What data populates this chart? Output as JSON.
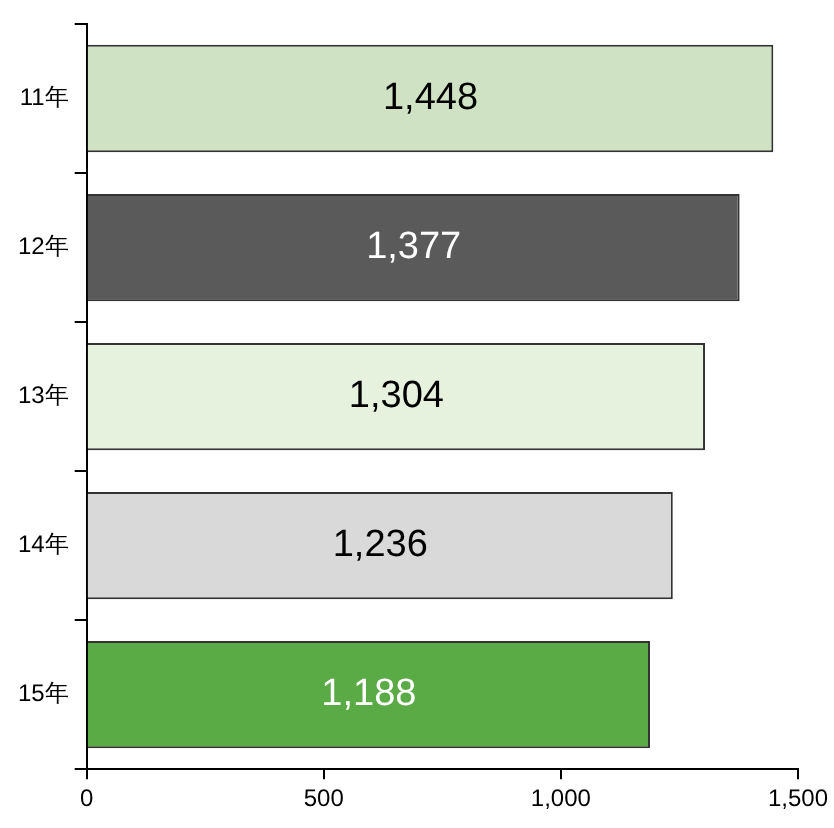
{
  "chart_data": {
    "type": "bar",
    "orientation": "horizontal",
    "categories": [
      "11年",
      "12年",
      "13年",
      "14年",
      "15年"
    ],
    "values": [
      1448,
      1377,
      1304,
      1236,
      1188
    ],
    "colors": [
      "#cfe3c4",
      "#5a5a5a",
      "#e6f2de",
      "#d9d9d9",
      "#5aaa46"
    ],
    "xlim": [
      0,
      1500
    ],
    "xticks": [
      0,
      500,
      {
        "value": 1000,
        "label": "1,000"
      },
      {
        "value": 1500,
        "label": "1,500"
      }
    ],
    "value_labels": [
      "1,448",
      "1,377",
      "1,304",
      "1,236",
      "1,188"
    ],
    "grid": false,
    "legend": false
  }
}
